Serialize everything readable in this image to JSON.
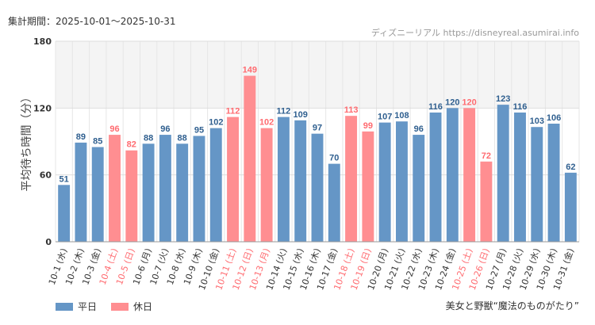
{
  "header": {
    "period": "集計期間：2025-10-01～2025-10-31",
    "site": "ディズニーリアル https://disneyreal.asumirai.info"
  },
  "footer": {
    "attraction": "美女と野獣“魔法のものがたり”"
  },
  "colors": {
    "weekday": "#6596c6",
    "holiday": "#ff8e91",
    "holiday_text": "#ff6b70",
    "weekday_text": "#2f5f8f",
    "axis_text": "#333333"
  },
  "chart_data": {
    "type": "bar",
    "ylabel": "平均待ち時間（分）",
    "ylim": [
      0,
      180
    ],
    "yticks": [
      0,
      60,
      120,
      180
    ],
    "categories": [
      "10-1 (水)",
      "10-2 (木)",
      "10-3 (金)",
      "10-4 (土)",
      "10-5 (日)",
      "10-6 (月)",
      "10-7 (火)",
      "10-8 (水)",
      "10-9 (木)",
      "10-10 (金)",
      "10-11 (土)",
      "10-12 (日)",
      "10-13 (月)",
      "10-14 (火)",
      "10-15 (水)",
      "10-16 (木)",
      "10-17 (金)",
      "10-18 (土)",
      "10-19 (日)",
      "10-20 (月)",
      "10-21 (火)",
      "10-22 (水)",
      "10-23 (木)",
      "10-24 (金)",
      "10-25 (土)",
      "10-26 (日)",
      "10-27 (月)",
      "10-28 (火)",
      "10-29 (水)",
      "10-30 (木)",
      "10-31 (金)"
    ],
    "values": [
      51,
      89,
      85,
      96,
      82,
      88,
      96,
      88,
      95,
      102,
      112,
      149,
      102,
      112,
      109,
      97,
      70,
      113,
      99,
      107,
      108,
      96,
      116,
      120,
      120,
      72,
      123,
      116,
      103,
      106,
      62
    ],
    "holiday": [
      false,
      false,
      false,
      true,
      true,
      false,
      false,
      false,
      false,
      false,
      true,
      true,
      true,
      false,
      false,
      false,
      false,
      true,
      true,
      false,
      false,
      false,
      false,
      false,
      true,
      true,
      false,
      false,
      false,
      false,
      false
    ],
    "legend": [
      {
        "name": "平日",
        "color": "#6596c6"
      },
      {
        "name": "休日",
        "color": "#ff8e91"
      }
    ]
  }
}
